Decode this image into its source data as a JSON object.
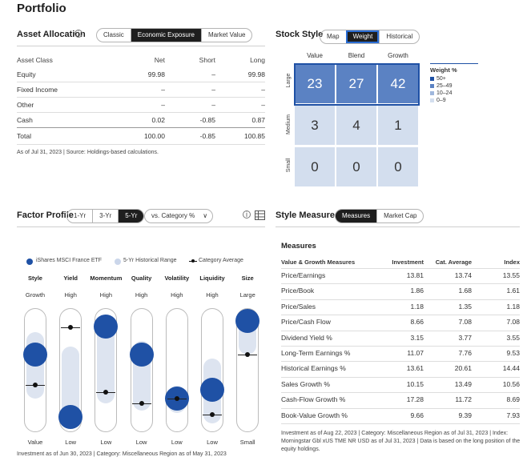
{
  "page_title": "Portfolio",
  "asset_allocation": {
    "title": "Asset Allocation",
    "tabs": [
      {
        "label": "Classic",
        "active": false
      },
      {
        "label": "Economic Exposure",
        "active": true
      },
      {
        "label": "Market Value",
        "active": false
      }
    ],
    "columns": [
      "Asset Class",
      "Net",
      "Short",
      "Long"
    ],
    "rows": [
      {
        "name": "Equity",
        "net": "99.98",
        "short": "–",
        "long": "99.98"
      },
      {
        "name": "Fixed Income",
        "net": "–",
        "short": "–",
        "long": "–"
      },
      {
        "name": "Other",
        "net": "–",
        "short": "–",
        "long": "–"
      },
      {
        "name": "Cash",
        "net": "0.02",
        "short": "-0.85",
        "long": "0.87"
      },
      {
        "name": "Total",
        "net": "100.00",
        "short": "-0.85",
        "long": "100.85"
      }
    ],
    "footnote": "As of Jul 31, 2023 | Source: Holdings-based calculations."
  },
  "stock_style": {
    "title": "Stock Style",
    "tabs": [
      {
        "label": "Map",
        "active": false
      },
      {
        "label": "Weight",
        "active": true
      },
      {
        "label": "Historical",
        "active": false
      }
    ],
    "col_labels": [
      "Value",
      "Blend",
      "Growth"
    ],
    "row_labels": [
      "Large",
      "Medium",
      "Small"
    ],
    "grid": [
      [
        "23",
        "27",
        "42"
      ],
      [
        "3",
        "4",
        "1"
      ],
      [
        "0",
        "0",
        "0"
      ]
    ],
    "legend_title": "Weight %",
    "legend": [
      {
        "label": "50+",
        "color": "#1f51a5"
      },
      {
        "label": "25–49",
        "color": "#5b82c3"
      },
      {
        "label": "10–24",
        "color": "#9fb7dc"
      },
      {
        "label": "0–9",
        "color": "#d3deee"
      }
    ]
  },
  "factor_profile": {
    "title": "Factor Profile",
    "tabs": [
      {
        "label": "1-Yr",
        "active": false
      },
      {
        "label": "3-Yr",
        "active": false
      },
      {
        "label": "5-Yr",
        "active": true
      }
    ],
    "compare_select": "vs. Category %",
    "legend": {
      "fund": "iShares MSCI France ETF",
      "range": "5-Yr Historical Range",
      "category": "Category Average"
    },
    "factors": [
      {
        "name": "Style",
        "top": "Growth",
        "bottom": "Value",
        "fund": 0.63,
        "cat": 0.39,
        "range": [
          0.28,
          0.81
        ]
      },
      {
        "name": "Yield",
        "top": "High",
        "bottom": "Low",
        "fund": 0.13,
        "cat": 0.85,
        "range": [
          0.06,
          0.7
        ]
      },
      {
        "name": "Momentum",
        "top": "High",
        "bottom": "Low",
        "fund": 0.86,
        "cat": 0.33,
        "range": [
          0.24,
          0.92
        ]
      },
      {
        "name": "Quality",
        "top": "High",
        "bottom": "Low",
        "fund": 0.63,
        "cat": 0.24,
        "range": [
          0.18,
          0.74
        ]
      },
      {
        "name": "Volatility",
        "top": "High",
        "bottom": "Low",
        "fund": 0.28,
        "cat": 0.28,
        "range": [
          0.16,
          0.38
        ]
      },
      {
        "name": "Liquidity",
        "top": "High",
        "bottom": "Low",
        "fund": 0.35,
        "cat": 0.15,
        "range": [
          0.08,
          0.6
        ]
      },
      {
        "name": "Size",
        "top": "Large",
        "bottom": "Small",
        "fund": 0.9,
        "cat": 0.63,
        "range": [
          0.63,
          0.98
        ]
      }
    ],
    "footnote": "Investment as of Jun 30, 2023 | Category: Miscellaneous Region as of May 31, 2023"
  },
  "style_measures": {
    "title": "Style Measures",
    "tabs": [
      {
        "label": "Measures",
        "active": true
      },
      {
        "label": "Market Cap",
        "active": false
      }
    ],
    "heading": "Measures",
    "columns": [
      "Value & Growth Measures",
      "Investment",
      "Cat. Average",
      "Index"
    ],
    "rows": [
      {
        "name": "Price/Earnings",
        "inv": "13.81",
        "cat": "13.74",
        "idx": "13.55"
      },
      {
        "name": "Price/Book",
        "inv": "1.86",
        "cat": "1.68",
        "idx": "1.61"
      },
      {
        "name": "Price/Sales",
        "inv": "1.18",
        "cat": "1.35",
        "idx": "1.18"
      },
      {
        "name": "Price/Cash Flow",
        "inv": "8.66",
        "cat": "7.08",
        "idx": "7.08"
      },
      {
        "name": "Dividend Yield %",
        "inv": "3.15",
        "cat": "3.77",
        "idx": "3.55"
      },
      {
        "name": "Long-Term Earnings %",
        "inv": "11.07",
        "cat": "7.76",
        "idx": "9.53"
      },
      {
        "name": "Historical Earnings %",
        "inv": "13.61",
        "cat": "20.61",
        "idx": "14.44"
      },
      {
        "name": "Sales Growth %",
        "inv": "10.15",
        "cat": "13.49",
        "idx": "10.56"
      },
      {
        "name": "Cash-Flow Growth %",
        "inv": "17.28",
        "cat": "11.72",
        "idx": "8.69"
      },
      {
        "name": "Book-Value Growth %",
        "inv": "9.66",
        "cat": "9.39",
        "idx": "7.93"
      }
    ],
    "footnote": "Investment as of Aug 22, 2023 | Category: Miscellaneous Region as of Jul 31, 2023 | Index: Morningstar Gbl xUS TME NR USD as of Jul 31, 2023 | Data is based on the long position of the equity holdings."
  }
}
